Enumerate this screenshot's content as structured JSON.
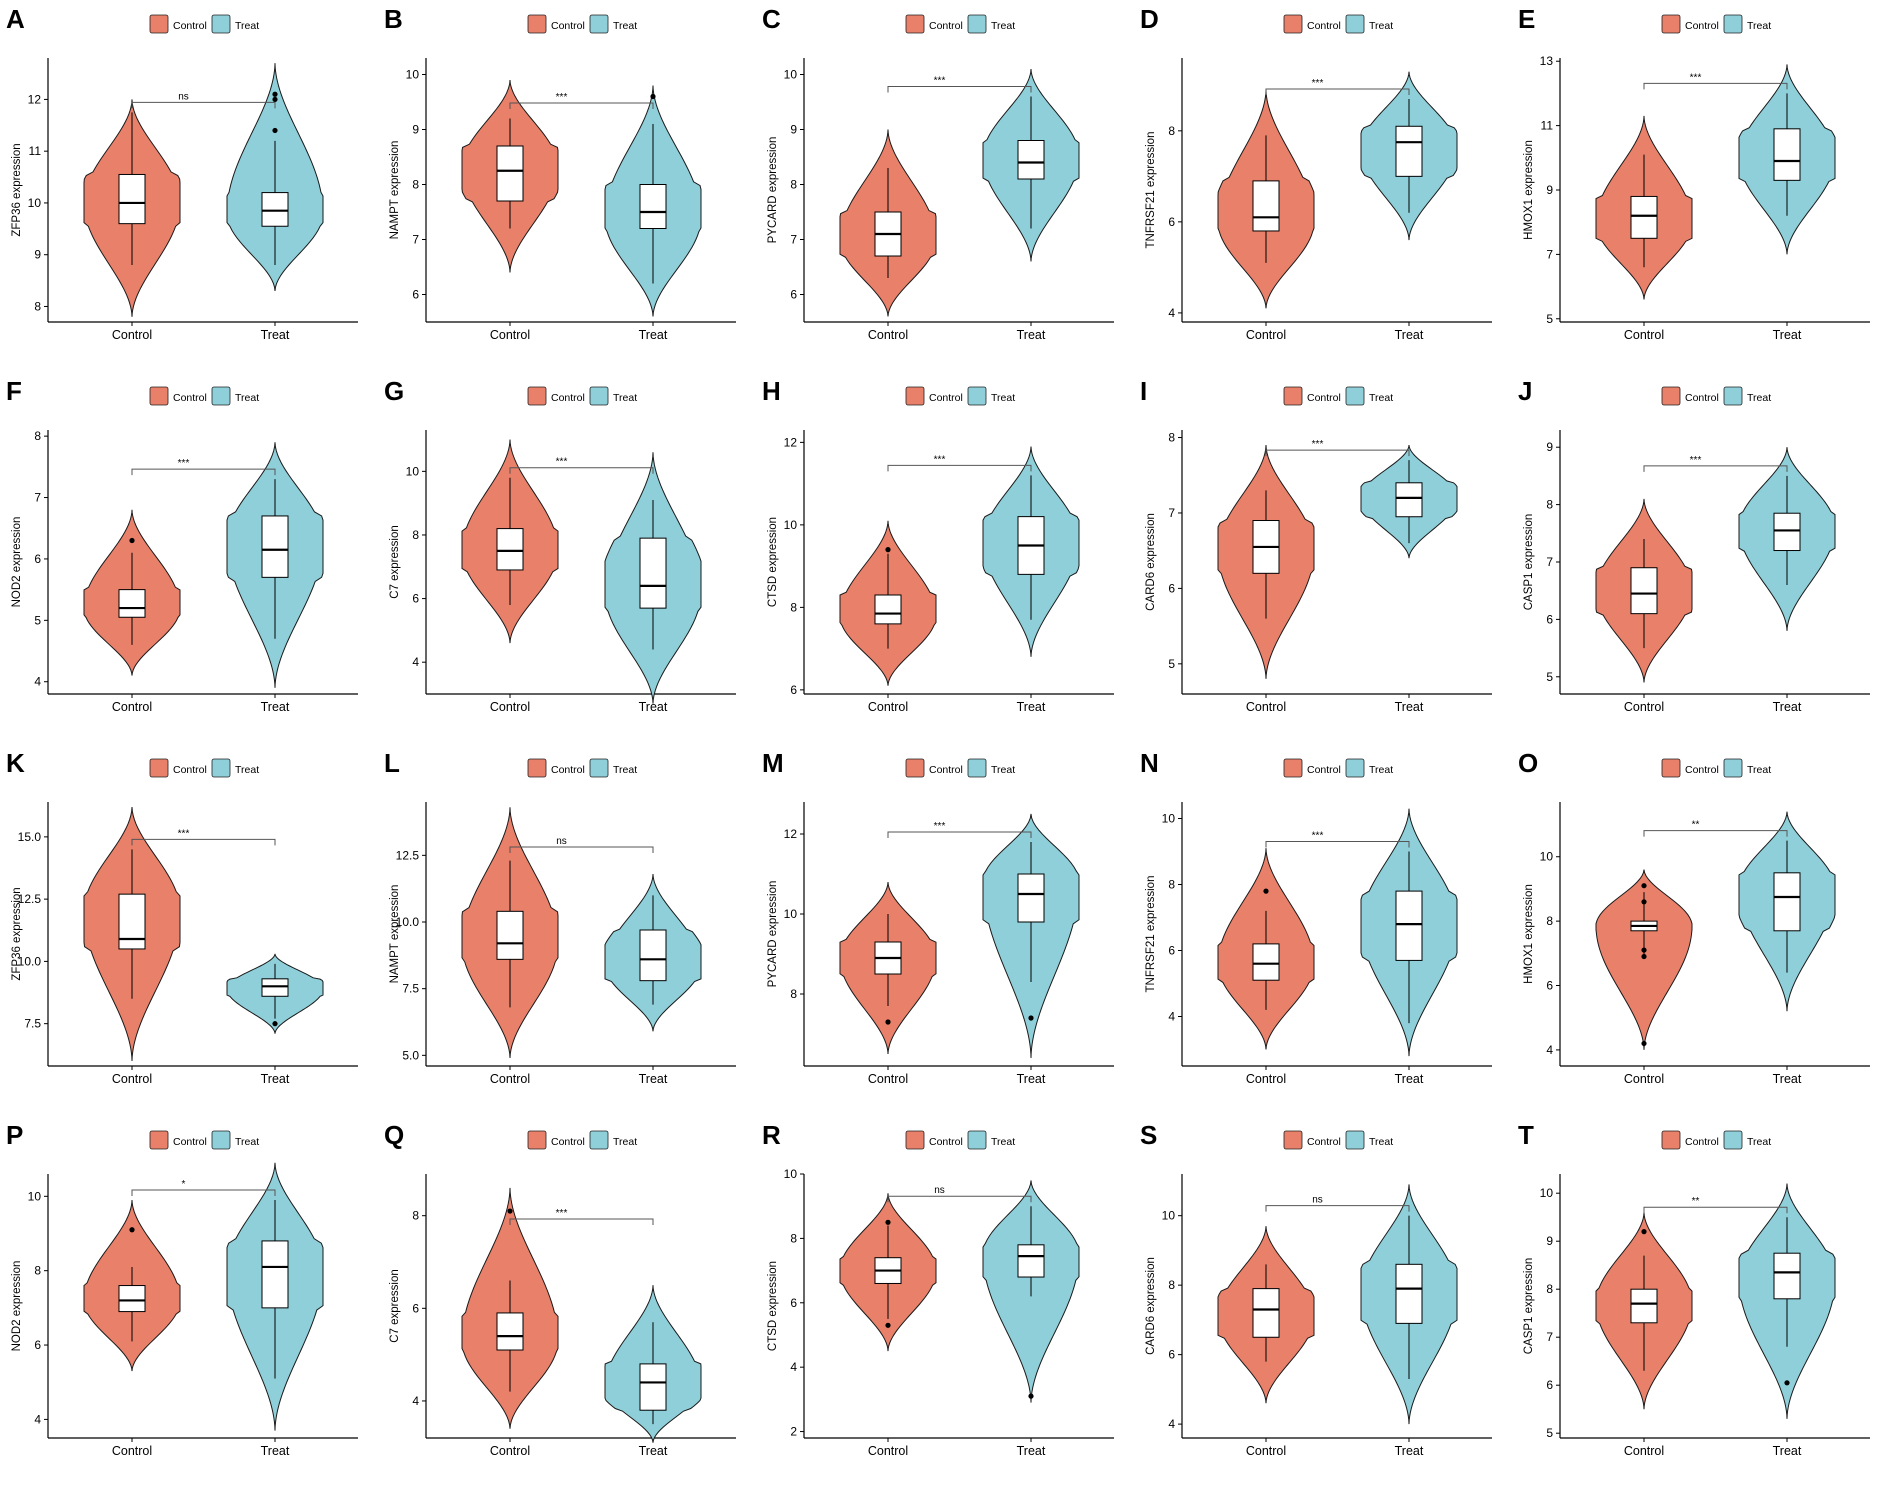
{
  "colors": {
    "control": "#E8806A",
    "treat": "#8ECFD9"
  },
  "legend": {
    "control": "Control",
    "treat": "Treat"
  },
  "chart_data": [
    {
      "label": "A",
      "type": "violin",
      "ylabel": "ZFP36 expression",
      "yticks": [
        8,
        9,
        10,
        11,
        12
      ],
      "ylim": [
        7.7,
        12.8
      ],
      "sig": "ns",
      "categories": [
        "Control",
        "Treat"
      ],
      "series": [
        {
          "name": "Control",
          "range": [
            7.8,
            12.0
          ],
          "mode": 10.0,
          "q1": 9.6,
          "median": 10.0,
          "q3": 10.55,
          "whisk": [
            8.8,
            11.75
          ],
          "outliers": []
        },
        {
          "name": "Treat",
          "range": [
            8.3,
            12.7
          ],
          "mode": 9.8,
          "q1": 9.55,
          "median": 9.85,
          "q3": 10.2,
          "whisk": [
            8.8,
            11.2
          ],
          "outliers": [
            11.4,
            12.0,
            12.1
          ]
        }
      ]
    },
    {
      "label": "B",
      "type": "violin",
      "ylabel": "NAMPT expression",
      "yticks": [
        6,
        7,
        8,
        9,
        10
      ],
      "ylim": [
        5.5,
        10.3
      ],
      "sig": "***",
      "categories": [
        "Control",
        "Treat"
      ],
      "series": [
        {
          "name": "Control",
          "range": [
            6.4,
            9.9
          ],
          "mode": 8.3,
          "q1": 7.7,
          "median": 8.25,
          "q3": 8.7,
          "whisk": [
            7.2,
            9.2
          ],
          "outliers": []
        },
        {
          "name": "Treat",
          "range": [
            5.6,
            9.8
          ],
          "mode": 7.4,
          "q1": 7.2,
          "median": 7.5,
          "q3": 8.0,
          "whisk": [
            6.2,
            9.1
          ],
          "outliers": [
            9.6
          ]
        }
      ]
    },
    {
      "label": "C",
      "type": "violin",
      "ylabel": "PYCARD expression",
      "yticks": [
        6,
        7,
        8,
        9,
        10
      ],
      "ylim": [
        5.5,
        10.3
      ],
      "sig": "***",
      "categories": [
        "Control",
        "Treat"
      ],
      "series": [
        {
          "name": "Control",
          "range": [
            5.6,
            9.0
          ],
          "mode": 7.0,
          "q1": 6.7,
          "median": 7.1,
          "q3": 7.5,
          "whisk": [
            6.3,
            8.3
          ],
          "outliers": []
        },
        {
          "name": "Treat",
          "range": [
            6.6,
            10.1
          ],
          "mode": 8.5,
          "q1": 8.1,
          "median": 8.4,
          "q3": 8.8,
          "whisk": [
            7.2,
            9.6
          ],
          "outliers": []
        }
      ]
    },
    {
      "label": "D",
      "type": "violin",
      "ylabel": "TNFRSF21 expression",
      "yticks": [
        4,
        6,
        8
      ],
      "ylim": [
        3.8,
        9.6
      ],
      "sig": "***",
      "categories": [
        "Control",
        "Treat"
      ],
      "series": [
        {
          "name": "Control",
          "range": [
            4.1,
            8.9
          ],
          "mode": 6.0,
          "q1": 5.8,
          "median": 6.1,
          "q3": 6.9,
          "whisk": [
            5.1,
            7.9
          ],
          "outliers": []
        },
        {
          "name": "Treat",
          "range": [
            5.6,
            9.3
          ],
          "mode": 7.6,
          "q1": 7.0,
          "median": 7.75,
          "q3": 8.1,
          "whisk": [
            6.2,
            8.7
          ],
          "outliers": []
        }
      ]
    },
    {
      "label": "E",
      "type": "violin",
      "ylabel": "HMOX1 expression",
      "yticks": [
        5,
        7,
        9,
        11,
        13
      ],
      "ylim": [
        4.9,
        13.1
      ],
      "sig": "***",
      "categories": [
        "Control",
        "Treat"
      ],
      "series": [
        {
          "name": "Control",
          "range": [
            5.6,
            11.3
          ],
          "mode": 8.0,
          "q1": 7.5,
          "median": 8.2,
          "q3": 8.8,
          "whisk": [
            6.6,
            10.1
          ],
          "outliers": []
        },
        {
          "name": "Treat",
          "range": [
            7.0,
            12.9
          ],
          "mode": 10.0,
          "q1": 9.3,
          "median": 9.9,
          "q3": 10.9,
          "whisk": [
            8.2,
            12.0
          ],
          "outliers": []
        }
      ]
    },
    {
      "label": "F",
      "type": "violin",
      "ylabel": "NOD2 expression",
      "yticks": [
        4,
        5,
        6,
        7,
        8
      ],
      "ylim": [
        3.8,
        8.1
      ],
      "sig": "***",
      "categories": [
        "Control",
        "Treat"
      ],
      "series": [
        {
          "name": "Control",
          "range": [
            4.1,
            6.8
          ],
          "mode": 5.2,
          "q1": 5.05,
          "median": 5.2,
          "q3": 5.5,
          "whisk": [
            4.6,
            6.1
          ],
          "outliers": [
            6.3
          ]
        },
        {
          "name": "Treat",
          "range": [
            3.9,
            7.9
          ],
          "mode": 6.3,
          "q1": 5.7,
          "median": 6.15,
          "q3": 6.7,
          "whisk": [
            4.7,
            7.3
          ],
          "outliers": []
        }
      ]
    },
    {
      "label": "G",
      "type": "violin",
      "ylabel": "C7 expression",
      "yticks": [
        4,
        6,
        8,
        10
      ],
      "ylim": [
        3.0,
        11.3
      ],
      "sig": "***",
      "categories": [
        "Control",
        "Treat"
      ],
      "series": [
        {
          "name": "Control",
          "range": [
            4.6,
            11.0
          ],
          "mode": 7.5,
          "q1": 6.9,
          "median": 7.5,
          "q3": 8.2,
          "whisk": [
            5.8,
            9.8
          ],
          "outliers": []
        },
        {
          "name": "Treat",
          "range": [
            2.7,
            10.6
          ],
          "mode": 6.2,
          "q1": 5.7,
          "median": 6.4,
          "q3": 7.9,
          "whisk": [
            4.4,
            9.1
          ],
          "outliers": []
        }
      ]
    },
    {
      "label": "H",
      "type": "violin",
      "ylabel": "CTSD expression",
      "yticks": [
        6,
        8,
        10,
        12
      ],
      "ylim": [
        5.9,
        12.3
      ],
      "sig": "***",
      "categories": [
        "Control",
        "Treat"
      ],
      "series": [
        {
          "name": "Control",
          "range": [
            6.1,
            10.1
          ],
          "mode": 7.8,
          "q1": 7.6,
          "median": 7.85,
          "q3": 8.3,
          "whisk": [
            7.0,
            9.3
          ],
          "outliers": [
            9.4
          ]
        },
        {
          "name": "Treat",
          "range": [
            6.8,
            11.9
          ],
          "mode": 9.6,
          "q1": 8.8,
          "median": 9.5,
          "q3": 10.2,
          "whisk": [
            7.7,
            11.2
          ],
          "outliers": []
        }
      ]
    },
    {
      "label": "I",
      "type": "violin",
      "ylabel": "CARD6 expression",
      "yticks": [
        5,
        6,
        7,
        8
      ],
      "ylim": [
        4.6,
        8.1
      ],
      "sig": "***",
      "categories": [
        "Control",
        "Treat"
      ],
      "series": [
        {
          "name": "Control",
          "range": [
            4.8,
            7.9
          ],
          "mode": 6.5,
          "q1": 6.2,
          "median": 6.55,
          "q3": 6.9,
          "whisk": [
            5.6,
            7.3
          ],
          "outliers": []
        },
        {
          "name": "Treat",
          "range": [
            6.4,
            7.9
          ],
          "mode": 7.2,
          "q1": 6.95,
          "median": 7.2,
          "q3": 7.4,
          "whisk": [
            6.6,
            7.7
          ],
          "outliers": []
        }
      ]
    },
    {
      "label": "J",
      "type": "violin",
      "ylabel": "CASP1 expression",
      "yticks": [
        5,
        6,
        7,
        8,
        9
      ],
      "ylim": [
        4.7,
        9.3
      ],
      "sig": "***",
      "categories": [
        "Control",
        "Treat"
      ],
      "series": [
        {
          "name": "Control",
          "range": [
            4.9,
            8.1
          ],
          "mode": 6.5,
          "q1": 6.1,
          "median": 6.45,
          "q3": 6.9,
          "whisk": [
            5.5,
            7.4
          ],
          "outliers": []
        },
        {
          "name": "Treat",
          "range": [
            5.8,
            9.0
          ],
          "mode": 7.6,
          "q1": 7.2,
          "median": 7.55,
          "q3": 7.85,
          "whisk": [
            6.6,
            8.5
          ],
          "outliers": []
        }
      ]
    },
    {
      "label": "K",
      "type": "violin",
      "ylabel": "ZFP36 expression",
      "yticks": [
        7.5,
        10.0,
        12.5,
        15.0
      ],
      "ylim": [
        5.8,
        16.4
      ],
      "sig": "***",
      "categories": [
        "Control",
        "Treat"
      ],
      "series": [
        {
          "name": "Control",
          "range": [
            6.0,
            16.2
          ],
          "mode": 12.0,
          "q1": 10.5,
          "median": 10.9,
          "q3": 12.7,
          "whisk": [
            8.5,
            14.5
          ],
          "outliers": []
        },
        {
          "name": "Treat",
          "range": [
            7.1,
            10.3
          ],
          "mode": 8.9,
          "q1": 8.6,
          "median": 9.0,
          "q3": 9.3,
          "whisk": [
            7.7,
            9.9
          ],
          "outliers": [
            7.5
          ]
        }
      ]
    },
    {
      "label": "L",
      "type": "violin",
      "ylabel": "NAMPT expression",
      "yticks": [
        5.0,
        7.5,
        10.0,
        12.5
      ],
      "ylim": [
        4.6,
        14.5
      ],
      "sig": "ns",
      "categories": [
        "Control",
        "Treat"
      ],
      "series": [
        {
          "name": "Control",
          "range": [
            4.9,
            14.3
          ],
          "mode": 9.2,
          "q1": 8.6,
          "median": 9.2,
          "q3": 10.4,
          "whisk": [
            6.8,
            12.3
          ],
          "outliers": []
        },
        {
          "name": "Treat",
          "range": [
            5.9,
            11.8
          ],
          "mode": 8.4,
          "q1": 7.8,
          "median": 8.6,
          "q3": 9.7,
          "whisk": [
            6.9,
            11.0
          ],
          "outliers": []
        }
      ]
    },
    {
      "label": "M",
      "type": "violin",
      "ylabel": "PYCARD expression",
      "yticks": [
        8,
        10,
        12
      ],
      "ylim": [
        6.2,
        12.8
      ],
      "sig": "***",
      "categories": [
        "Control",
        "Treat"
      ],
      "series": [
        {
          "name": "Control",
          "range": [
            6.5,
            10.8
          ],
          "mode": 8.9,
          "q1": 8.5,
          "median": 8.9,
          "q3": 9.3,
          "whisk": [
            7.7,
            10.0
          ],
          "outliers": [
            7.3
          ]
        },
        {
          "name": "Treat",
          "range": [
            6.4,
            12.5
          ],
          "mode": 10.8,
          "q1": 9.8,
          "median": 10.5,
          "q3": 11.0,
          "whisk": [
            8.3,
            11.8
          ],
          "outliers": [
            7.4
          ]
        }
      ]
    },
    {
      "label": "N",
      "type": "violin",
      "ylabel": "TNFRSF21 expression",
      "yticks": [
        4,
        6,
        8,
        10
      ],
      "ylim": [
        2.5,
        10.5
      ],
      "sig": "***",
      "categories": [
        "Control",
        "Treat"
      ],
      "series": [
        {
          "name": "Control",
          "range": [
            3.0,
            9.1
          ],
          "mode": 5.6,
          "q1": 5.1,
          "median": 5.6,
          "q3": 6.2,
          "whisk": [
            4.2,
            7.2
          ],
          "outliers": [
            7.8
          ]
        },
        {
          "name": "Treat",
          "range": [
            2.8,
            10.3
          ],
          "mode": 6.8,
          "q1": 5.7,
          "median": 6.8,
          "q3": 7.8,
          "whisk": [
            3.8,
            9.0
          ],
          "outliers": []
        }
      ]
    },
    {
      "label": "O",
      "type": "violin",
      "ylabel": "HMOX1 expression",
      "yticks": [
        4,
        6,
        8,
        10
      ],
      "ylim": [
        3.5,
        11.7
      ],
      "sig": "**",
      "categories": [
        "Control",
        "Treat"
      ],
      "series": [
        {
          "name": "Control",
          "range": [
            4.0,
            9.6
          ],
          "mode": 7.85,
          "q1": 7.7,
          "median": 7.85,
          "q3": 8.0,
          "whisk": [
            6.9,
            8.9
          ],
          "outliers": [
            4.2,
            6.9,
            7.1,
            8.6,
            9.1
          ]
        },
        {
          "name": "Treat",
          "range": [
            5.2,
            11.4
          ],
          "mode": 9.0,
          "q1": 7.7,
          "median": 8.75,
          "q3": 9.5,
          "whisk": [
            6.4,
            10.5
          ],
          "outliers": []
        }
      ]
    },
    {
      "label": "P",
      "type": "violin",
      "ylabel": "NOD2 expression",
      "yticks": [
        4,
        6,
        8,
        10
      ],
      "ylim": [
        3.5,
        10.6
      ],
      "sig": "*",
      "categories": [
        "Control",
        "Treat"
      ],
      "series": [
        {
          "name": "Control",
          "range": [
            5.3,
            9.9
          ],
          "mode": 7.2,
          "q1": 6.9,
          "median": 7.2,
          "q3": 7.6,
          "whisk": [
            6.1,
            8.1
          ],
          "outliers": [
            9.1
          ]
        },
        {
          "name": "Treat",
          "range": [
            3.7,
            10.9
          ],
          "mode": 8.0,
          "q1": 7.0,
          "median": 8.1,
          "q3": 8.8,
          "whisk": [
            5.1,
            9.9
          ],
          "outliers": []
        }
      ]
    },
    {
      "label": "Q",
      "type": "violin",
      "ylabel": "C7 expression",
      "yticks": [
        4,
        6,
        8
      ],
      "ylim": [
        3.2,
        8.9
      ],
      "sig": "***",
      "categories": [
        "Control",
        "Treat"
      ],
      "series": [
        {
          "name": "Control",
          "range": [
            3.4,
            8.6
          ],
          "mode": 5.3,
          "q1": 5.1,
          "median": 5.4,
          "q3": 5.9,
          "whisk": [
            4.2,
            6.6
          ],
          "outliers": [
            8.1
          ]
        },
        {
          "name": "Treat",
          "range": [
            3.1,
            6.5
          ],
          "mode": 4.3,
          "q1": 3.8,
          "median": 4.4,
          "q3": 4.8,
          "whisk": [
            3.5,
            5.7
          ],
          "outliers": []
        }
      ]
    },
    {
      "label": "R",
      "type": "violin",
      "ylabel": "CTSD expression",
      "yticks": [
        2,
        4,
        6,
        8,
        10
      ],
      "ylim": [
        1.8,
        10.0
      ],
      "sig": "ns",
      "categories": [
        "Control",
        "Treat"
      ],
      "series": [
        {
          "name": "Control",
          "range": [
            4.5,
            9.4
          ],
          "mode": 7.0,
          "q1": 6.6,
          "median": 7.0,
          "q3": 7.4,
          "whisk": [
            5.5,
            8.4
          ],
          "outliers": [
            5.3,
            8.5
          ]
        },
        {
          "name": "Treat",
          "range": [
            2.9,
            9.8
          ],
          "mode": 7.5,
          "q1": 6.8,
          "median": 7.45,
          "q3": 7.8,
          "whisk": [
            6.2,
            9.0
          ],
          "outliers": [
            3.1
          ]
        }
      ]
    },
    {
      "label": "S",
      "type": "violin",
      "ylabel": "CARD6 expression",
      "yticks": [
        4,
        6,
        8,
        10
      ],
      "ylim": [
        3.6,
        11.2
      ],
      "sig": "ns",
      "categories": [
        "Control",
        "Treat"
      ],
      "series": [
        {
          "name": "Control",
          "range": [
            4.6,
            9.7
          ],
          "mode": 7.1,
          "q1": 6.5,
          "median": 7.3,
          "q3": 7.9,
          "whisk": [
            5.8,
            8.6
          ],
          "outliers": []
        },
        {
          "name": "Treat",
          "range": [
            4.0,
            10.9
          ],
          "mode": 7.8,
          "q1": 6.9,
          "median": 7.9,
          "q3": 8.6,
          "whisk": [
            5.3,
            10.0
          ],
          "outliers": []
        }
      ]
    },
    {
      "label": "T",
      "type": "violin",
      "ylabel": "CASP1 expression",
      "yticks": [
        5,
        6,
        7,
        8,
        9,
        10
      ],
      "ylim": [
        4.9,
        10.4
      ],
      "sig": "**",
      "categories": [
        "Control",
        "Treat"
      ],
      "series": [
        {
          "name": "Control",
          "range": [
            5.5,
            9.6
          ],
          "mode": 7.7,
          "q1": 7.3,
          "median": 7.7,
          "q3": 8.0,
          "whisk": [
            6.3,
            8.7
          ],
          "outliers": [
            9.2
          ]
        },
        {
          "name": "Treat",
          "range": [
            5.3,
            10.2
          ],
          "mode": 8.2,
          "q1": 7.8,
          "median": 8.35,
          "q3": 8.75,
          "whisk": [
            6.8,
            9.5
          ],
          "outliers": [
            6.05
          ]
        }
      ]
    }
  ]
}
